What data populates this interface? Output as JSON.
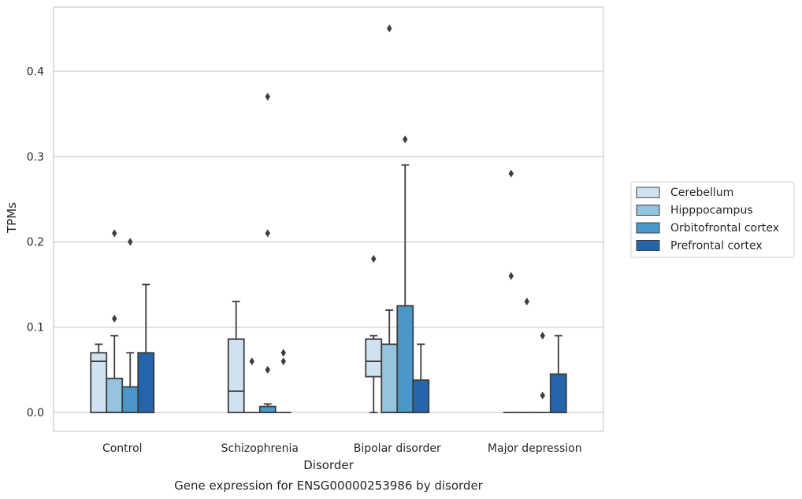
{
  "chart_data": {
    "type": "box",
    "title": "Gene expression for ENSG00000253986 by disorder",
    "xlabel": "Disorder",
    "ylabel": "TPMs",
    "ylim": [
      -0.022,
      0.475
    ],
    "yticks": [
      0.0,
      0.1,
      0.2,
      0.3,
      0.4
    ],
    "ytick_labels": [
      "0.0",
      "0.1",
      "0.2",
      "0.3",
      "0.4"
    ],
    "grid": true,
    "legend_position": "right",
    "categories": [
      "Control",
      "Schizophrenia",
      "Bipolar disorder",
      "Major depression"
    ],
    "series": [
      {
        "name": "Cerebellum",
        "color": "#d0e1f2",
        "boxes": [
          {
            "whisker_low": 0.0,
            "q1": 0.0,
            "median": 0.06,
            "q3": 0.07,
            "whisker_high": 0.08,
            "outliers": []
          },
          {
            "whisker_low": 0.0,
            "q1": 0.0,
            "median": 0.025,
            "q3": 0.086,
            "whisker_high": 0.13,
            "outliers": []
          },
          {
            "whisker_low": 0.0,
            "q1": 0.042,
            "median": 0.06,
            "q3": 0.086,
            "whisker_high": 0.09,
            "outliers": [
              0.18
            ]
          },
          {
            "whisker_low": 0.0,
            "q1": 0.0,
            "median": 0.0,
            "q3": 0.0,
            "whisker_high": 0.0,
            "outliers": [
              0.28,
              0.16
            ]
          }
        ]
      },
      {
        "name": "Hipppocampus",
        "color": "#94c4df",
        "boxes": [
          {
            "whisker_low": 0.0,
            "q1": 0.0,
            "median": 0.0,
            "q3": 0.04,
            "whisker_high": 0.09,
            "outliers": [
              0.21,
              0.11
            ]
          },
          {
            "whisker_low": 0.0,
            "q1": 0.0,
            "median": 0.0,
            "q3": 0.0,
            "whisker_high": 0.0,
            "outliers": [
              0.06
            ]
          },
          {
            "whisker_low": 0.0,
            "q1": 0.0,
            "median": 0.0,
            "q3": 0.08,
            "whisker_high": 0.12,
            "outliers": [
              0.45
            ]
          },
          {
            "whisker_low": 0.0,
            "q1": 0.0,
            "median": 0.0,
            "q3": 0.0,
            "whisker_high": 0.0,
            "outliers": [
              0.13
            ]
          }
        ]
      },
      {
        "name": "Orbitofrontal cortex",
        "color": "#4a98c9",
        "boxes": [
          {
            "whisker_low": 0.0,
            "q1": 0.0,
            "median": 0.0,
            "q3": 0.03,
            "whisker_high": 0.07,
            "outliers": [
              0.2
            ]
          },
          {
            "whisker_low": 0.0,
            "q1": 0.0,
            "median": 0.0,
            "q3": 0.007,
            "whisker_high": 0.01,
            "outliers": [
              0.37,
              0.21,
              0.05
            ]
          },
          {
            "whisker_low": 0.0,
            "q1": 0.0,
            "median": 0.0,
            "q3": 0.125,
            "whisker_high": 0.29,
            "outliers": [
              0.32
            ]
          },
          {
            "whisker_low": 0.0,
            "q1": 0.0,
            "median": 0.0,
            "q3": 0.0,
            "whisker_high": 0.0,
            "outliers": [
              0.09,
              0.02
            ]
          }
        ]
      },
      {
        "name": "Prefrontal cortex",
        "color": "#2565ab",
        "boxes": [
          {
            "whisker_low": 0.0,
            "q1": 0.0,
            "median": 0.0,
            "q3": 0.07,
            "whisker_high": 0.15,
            "outliers": []
          },
          {
            "whisker_low": 0.0,
            "q1": 0.0,
            "median": 0.0,
            "q3": 0.0,
            "whisker_high": 0.0,
            "outliers": [
              0.07,
              0.06
            ]
          },
          {
            "whisker_low": 0.0,
            "q1": 0.0,
            "median": 0.0,
            "q3": 0.038,
            "whisker_high": 0.08,
            "outliers": []
          },
          {
            "whisker_low": 0.0,
            "q1": 0.0,
            "median": 0.0,
            "q3": 0.045,
            "whisker_high": 0.09,
            "outliers": []
          }
        ]
      }
    ]
  }
}
